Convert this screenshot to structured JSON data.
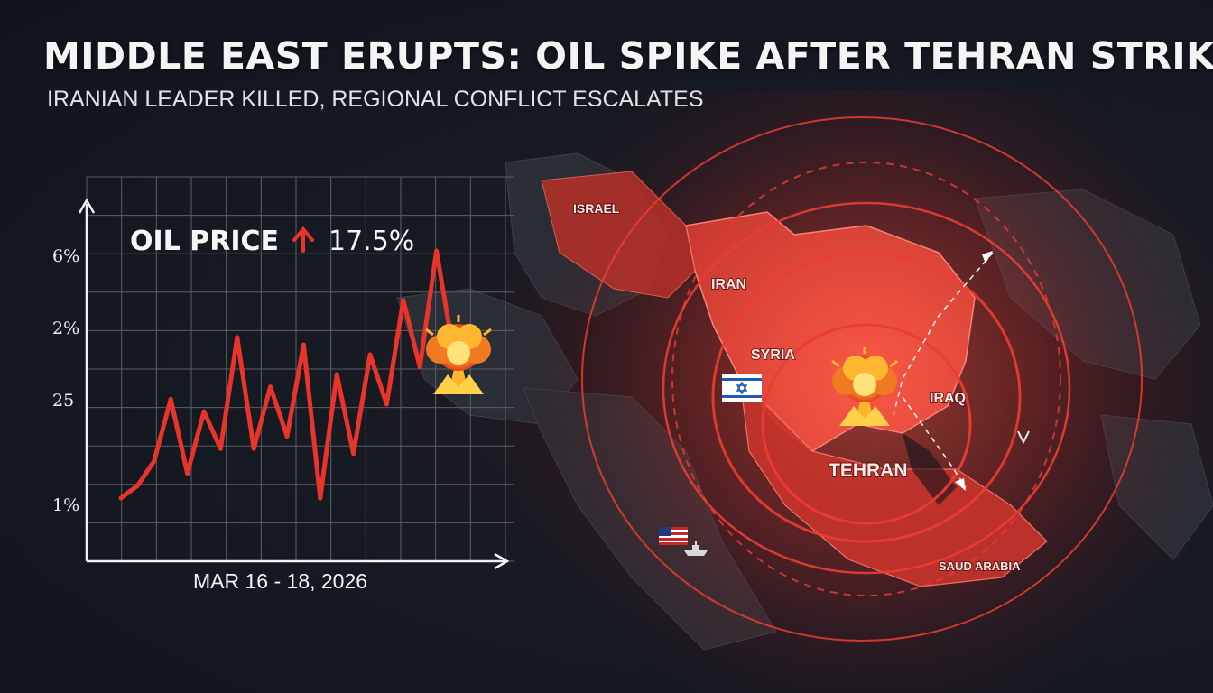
{
  "header": {
    "title": "MIDDLE EAST ERUPTS: OIL SPIKE AFTER TEHRAN STRIKE",
    "subtitle": "IRANIAN LEADER KILLED, REGIONAL CONFLICT ESCALATES"
  },
  "colors": {
    "accent_red": "#e8342a",
    "map_red": "#d93a32",
    "background": "#161a23",
    "text": "#f2f2f2"
  },
  "map": {
    "labels": {
      "israel": "ISRAEL",
      "iran": "IRAN",
      "syria": "SYRIA",
      "iraq": "IRAQ",
      "tehran": "TEHRAN",
      "saudi": "SAUD ARABIA"
    },
    "icons": [
      "explosion-icon",
      "israel-flag-icon",
      "usa-flag-icon",
      "warship-icon",
      "missile-icon"
    ]
  },
  "chart_data": {
    "type": "line",
    "callout": {
      "label": "OIL PRICE",
      "change": "17.5%",
      "direction": "up"
    },
    "y_tick_labels": [
      "6%",
      "2%",
      "25",
      "1%"
    ],
    "xlabel": "MAR 16 - 18, 2026",
    "series": [
      {
        "values": [
          0.0,
          0.05,
          0.15,
          0.4,
          0.1,
          0.35,
          0.2,
          0.65,
          0.2,
          0.45,
          0.25,
          0.62,
          0.0,
          0.5,
          0.18,
          0.58,
          0.38,
          0.8,
          0.53,
          1.0,
          0.6
        ]
      }
    ],
    "yrange": [
      0,
      1
    ],
    "grid": true,
    "marker": "explosion-icon"
  }
}
